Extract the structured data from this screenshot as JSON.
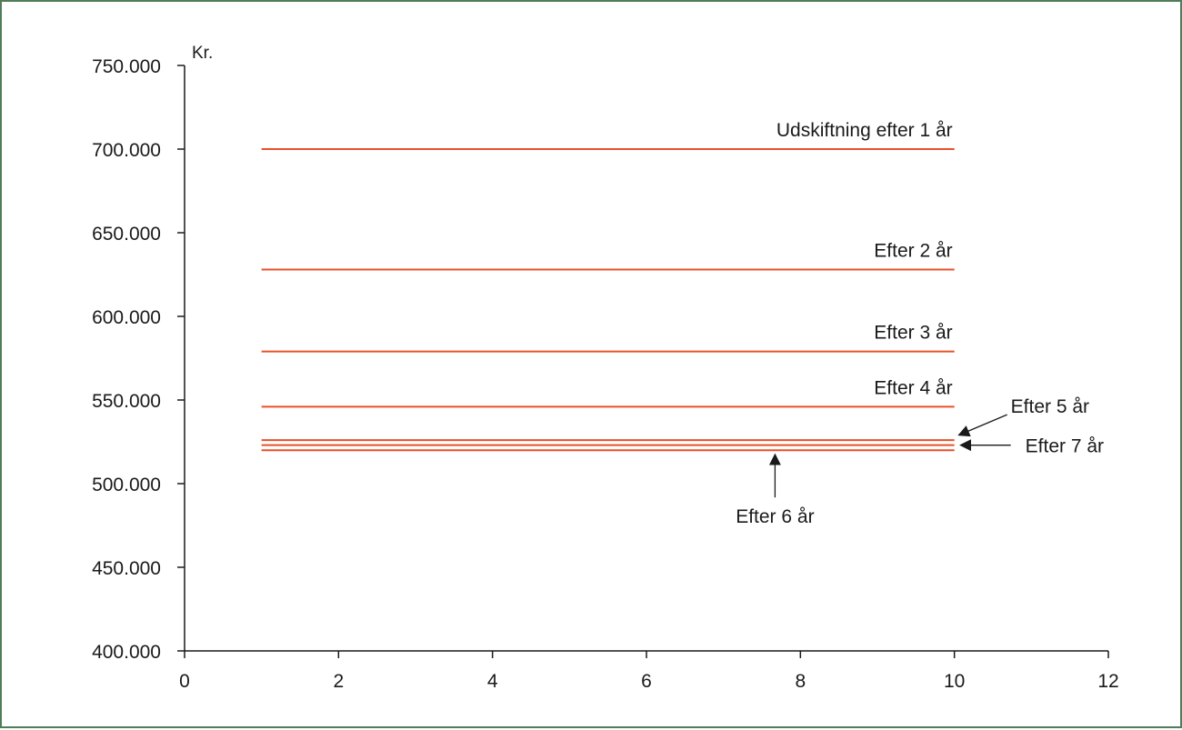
{
  "chart_data": {
    "type": "line",
    "title": "",
    "xlabel": "",
    "ylabel": "Kr.",
    "xlim": [
      0,
      12
    ],
    "ylim": [
      400000,
      750000
    ],
    "xticks": [
      0,
      2,
      4,
      6,
      8,
      10,
      12
    ],
    "yticks": [
      400000,
      450000,
      500000,
      550000,
      600000,
      650000,
      700000,
      750000
    ],
    "xtick_labels": [
      "0",
      "2",
      "4",
      "6",
      "8",
      "10",
      "12"
    ],
    "ytick_labels": [
      "400.000",
      "450.000",
      "500.000",
      "550.000",
      "600.000",
      "650.000",
      "700.000",
      "750.000"
    ],
    "grid": false,
    "line_color": "#e8502a",
    "series": [
      {
        "name": "Udskiftning efter 1 år",
        "x": [
          1,
          10
        ],
        "y": [
          700000,
          700000
        ],
        "label_pos": "above-right"
      },
      {
        "name": "Efter 2 år",
        "x": [
          1,
          10
        ],
        "y": [
          628000,
          628000
        ],
        "label_pos": "above-right"
      },
      {
        "name": "Efter 3 år",
        "x": [
          1,
          10
        ],
        "y": [
          579000,
          579000
        ],
        "label_pos": "above-right"
      },
      {
        "name": "Efter 4 år",
        "x": [
          1,
          10
        ],
        "y": [
          546000,
          546000
        ],
        "label_pos": "above-right"
      },
      {
        "name": "Efter 5 år",
        "x": [
          1,
          10
        ],
        "y": [
          526000,
          526000
        ],
        "label_pos": "arrow-upper-right"
      },
      {
        "name": "Efter 6 år",
        "x": [
          1,
          10
        ],
        "y": [
          520000,
          520000
        ],
        "label_pos": "arrow-below"
      },
      {
        "name": "Efter 7 år",
        "x": [
          1,
          10
        ],
        "y": [
          523000,
          523000
        ],
        "label_pos": "arrow-right"
      }
    ]
  }
}
